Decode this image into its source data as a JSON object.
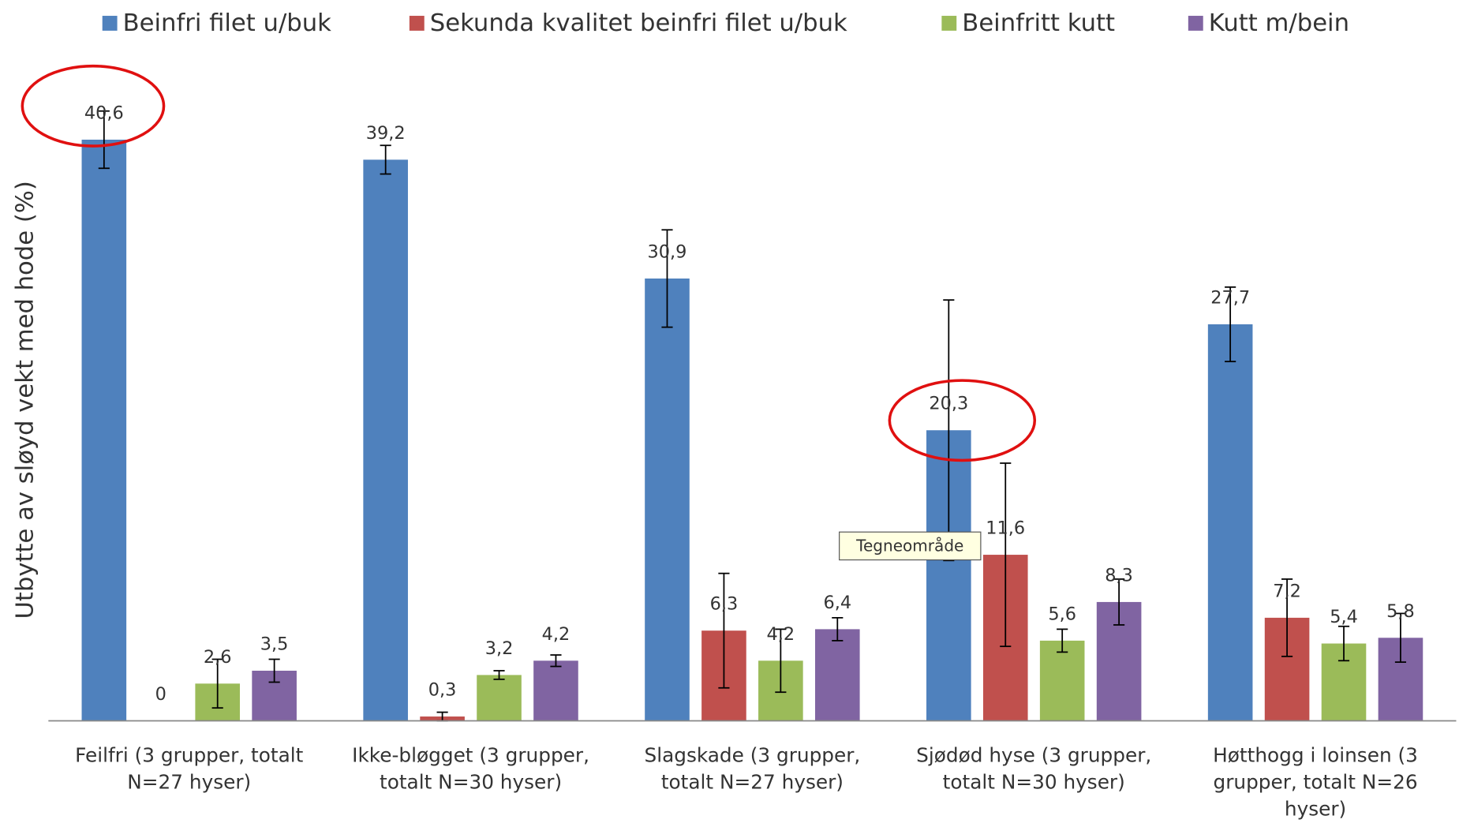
{
  "chart_data": {
    "type": "bar",
    "y_axis_label": "Utbytte av sløyd vekt med hode (%)",
    "categories": [
      [
        "Feilfri (3 grupper, totalt",
        "N=27 hyser)"
      ],
      [
        "Ikke-bløgget (3 grupper,",
        "totalt N=30 hyser)"
      ],
      [
        "Slagskade (3 grupper,",
        "totalt N=27 hyser)"
      ],
      [
        "Sjødød hyse (3 grupper,",
        "totalt N=30 hyser)"
      ],
      [
        "Høtthogg i loinsen (3",
        "grupper, totalt N=26",
        "hyser)"
      ]
    ],
    "series": [
      {
        "name": "Beinfri filet u/buk",
        "color": "#4f81bd",
        "values": [
          40.6,
          39.2,
          30.9,
          20.3,
          27.7
        ],
        "value_labels": [
          "40,6",
          "39,2",
          "30,9",
          "20,3",
          "27,7"
        ],
        "errors": [
          2.0,
          1.0,
          3.4,
          9.1,
          2.6
        ]
      },
      {
        "name": "Sekunda kvalitet beinfri filet u/buk",
        "color": "#c0504d",
        "values": [
          0,
          0.3,
          6.3,
          11.6,
          7.2
        ],
        "value_labels": [
          "0",
          "0,3",
          "6,3",
          "11,6",
          "7,2"
        ],
        "errors": [
          0,
          0.3,
          4.0,
          6.4,
          2.7
        ]
      },
      {
        "name": "Beinfritt kutt",
        "color": "#9bbb59",
        "values": [
          2.6,
          3.2,
          4.2,
          5.6,
          5.4
        ],
        "value_labels": [
          "2,6",
          "3,2",
          "4,2",
          "5,6",
          "5,4"
        ],
        "errors": [
          1.7,
          0.3,
          2.2,
          0.8,
          1.2
        ]
      },
      {
        "name": "Kutt m/bein",
        "color": "#8064a2",
        "values": [
          3.5,
          4.2,
          6.4,
          8.3,
          5.8
        ],
        "value_labels": [
          "3,5",
          "4,2",
          "6,4",
          "8,3",
          "5,8"
        ],
        "errors": [
          0.8,
          0.4,
          0.8,
          1.6,
          1.7
        ]
      }
    ],
    "ylim": [
      0,
      45
    ],
    "tooltip": "Tegneområde"
  }
}
